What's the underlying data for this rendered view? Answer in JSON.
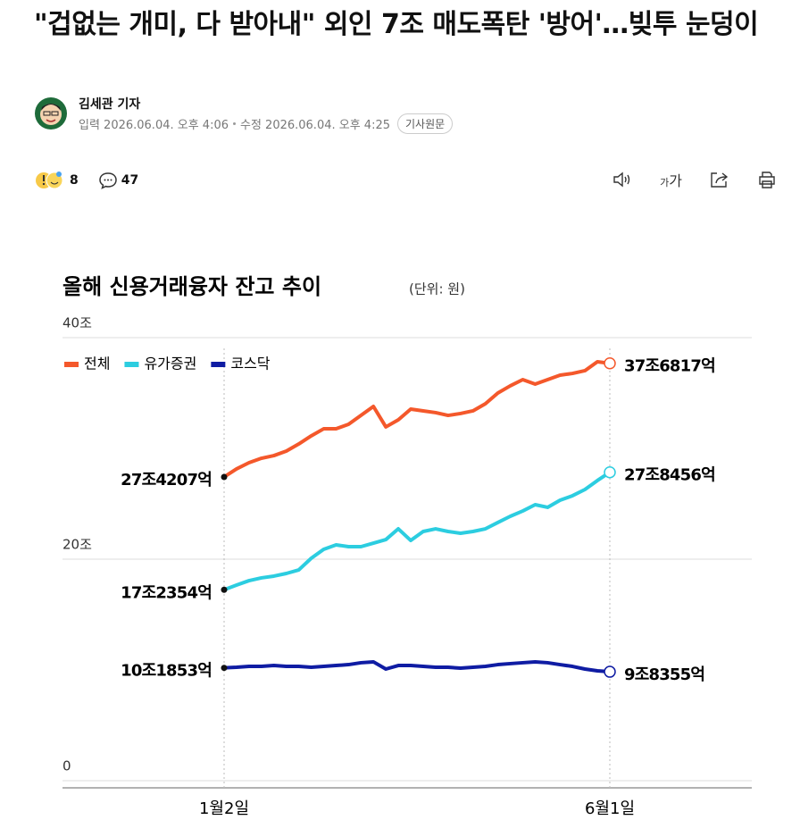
{
  "header": {
    "title": "\"겁없는 개미, 다 받아내\" 외인 7조 매도폭탄 '방어'…빚투 눈덩이",
    "author": "김세관 기자",
    "dates": {
      "input": "입력 2026.06.04. 오후 4:06",
      "modified": "수정 2026.06.04. 오후 4:25"
    },
    "original_button": "기사원문"
  },
  "reactions": {
    "likes": "8",
    "comments": "47"
  },
  "toolbar": {
    "font_size": [
      "가",
      "가"
    ]
  },
  "chart_data": {
    "type": "line",
    "title": "올해 신용거래융자 잔고 추이",
    "unit": "(단위: 원)",
    "categories": [
      "1월2일",
      null,
      null,
      null,
      null,
      null,
      null,
      null,
      null,
      null,
      null,
      null,
      null,
      null,
      null,
      null,
      null,
      null,
      null,
      null,
      null,
      null,
      null,
      null,
      null,
      null,
      null,
      null,
      null,
      null,
      null,
      "6월1일"
    ],
    "series": [
      {
        "name": "전체",
        "color": "#f4582b",
        "values": [
          27.4207,
          28.15,
          28.71,
          29.11,
          29.35,
          29.76,
          30.4,
          31.13,
          31.77,
          31.77,
          32.18,
          32.98,
          33.79,
          31.94,
          32.58,
          33.55,
          33.39,
          33.23,
          32.98,
          33.15,
          33.39,
          34.03,
          35.0,
          35.65,
          36.21,
          35.81,
          36.21,
          36.61,
          36.77,
          37.02,
          37.82,
          37.6817
        ],
        "value_labels": [
          "27조4207억",
          null,
          null,
          null,
          null,
          null,
          null,
          null,
          null,
          null,
          null,
          null,
          null,
          null,
          null,
          null,
          null,
          null,
          null,
          null,
          null,
          null,
          null,
          null,
          null,
          null,
          null,
          null,
          null,
          null,
          null,
          "37조6817억"
        ]
      },
      {
        "name": "유가증권",
        "color": "#2ccde0",
        "values": [
          17.2354,
          17.66,
          18.06,
          18.31,
          18.47,
          18.71,
          19.03,
          20.08,
          20.89,
          21.29,
          21.13,
          21.13,
          21.45,
          21.77,
          22.74,
          21.69,
          22.5,
          22.74,
          22.5,
          22.34,
          22.5,
          22.74,
          23.31,
          23.87,
          24.35,
          24.92,
          24.68,
          25.32,
          25.73,
          26.29,
          27.1,
          27.8456
        ],
        "value_labels": [
          "17조2354억",
          null,
          null,
          null,
          null,
          null,
          null,
          null,
          null,
          null,
          null,
          null,
          null,
          null,
          null,
          null,
          null,
          null,
          null,
          null,
          null,
          null,
          null,
          null,
          null,
          null,
          null,
          null,
          null,
          null,
          null,
          "27조8456억"
        ]
      },
      {
        "name": "코스닥",
        "color": "#0f1ca3",
        "values": [
          10.1853,
          10.24,
          10.32,
          10.32,
          10.4,
          10.32,
          10.32,
          10.24,
          10.32,
          10.4,
          10.48,
          10.65,
          10.73,
          10.08,
          10.4,
          10.4,
          10.32,
          10.24,
          10.24,
          10.16,
          10.24,
          10.32,
          10.48,
          10.57,
          10.65,
          10.73,
          10.65,
          10.48,
          10.32,
          10.08,
          9.92,
          9.8355
        ],
        "value_labels": [
          "10조1853억",
          null,
          null,
          null,
          null,
          null,
          null,
          null,
          null,
          null,
          null,
          null,
          null,
          null,
          null,
          null,
          null,
          null,
          null,
          null,
          null,
          null,
          null,
          null,
          null,
          null,
          null,
          null,
          null,
          null,
          null,
          "9조8355억"
        ]
      }
    ],
    "ylim": [
      0,
      40
    ],
    "yticks": [
      0,
      {
        "value": 20,
        "label": "20조"
      },
      {
        "value": 40,
        "label": "40조"
      }
    ],
    "grid": true,
    "legend": "top-left"
  }
}
